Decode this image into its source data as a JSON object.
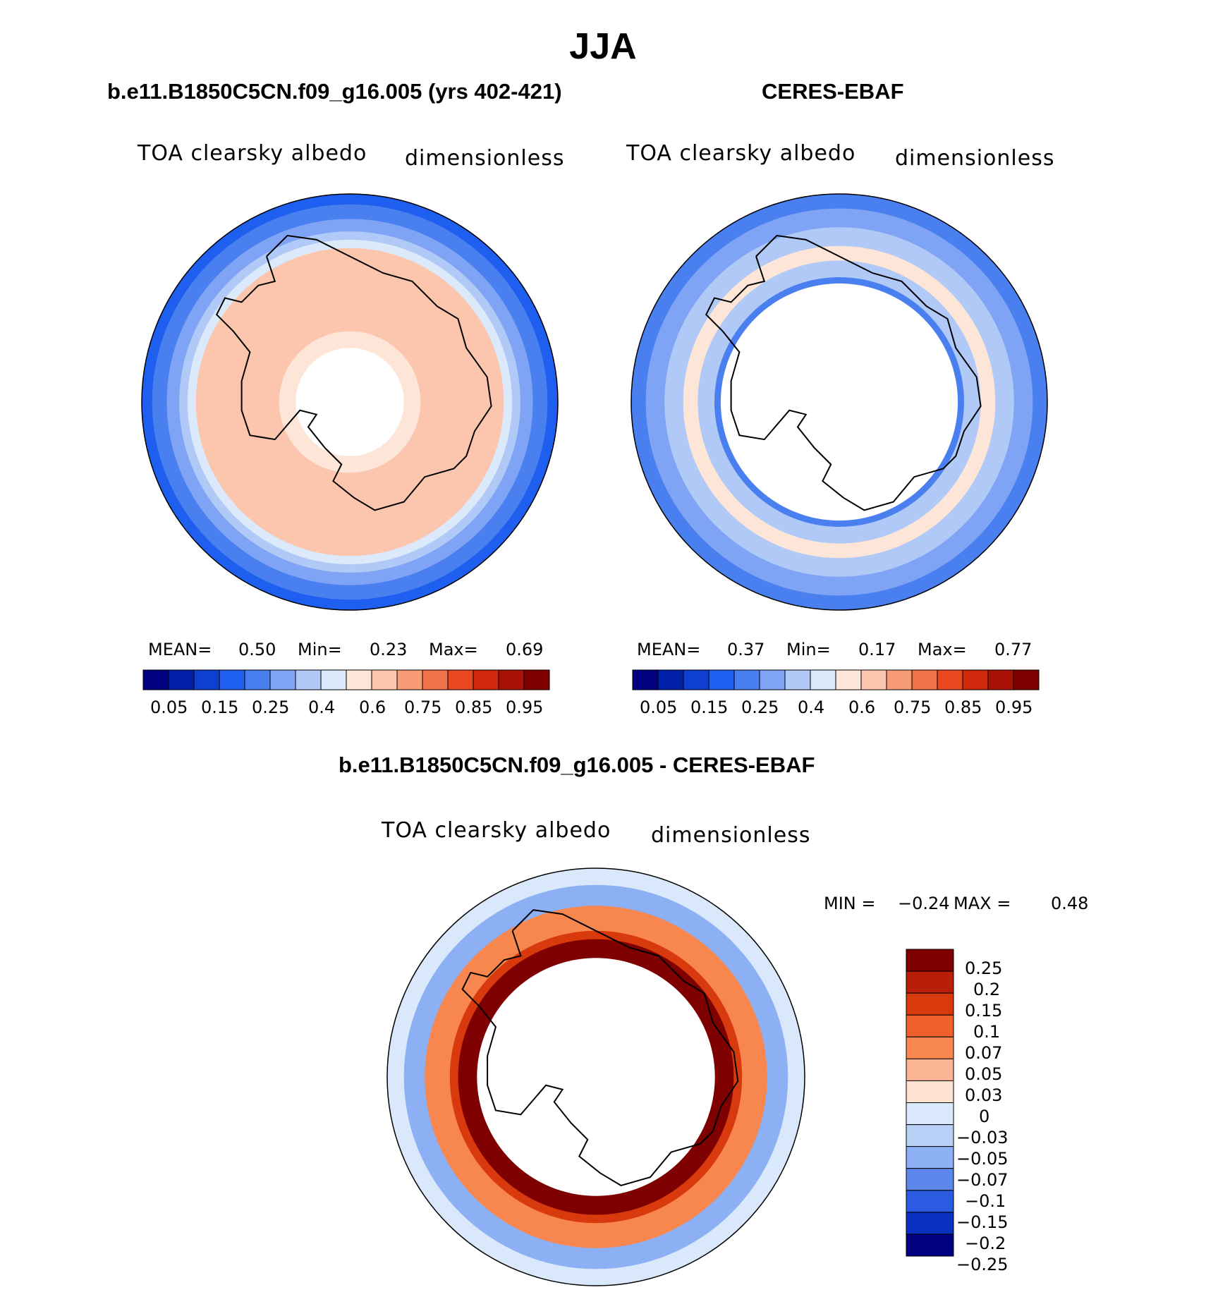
{
  "title": "JJA",
  "colors": {
    "abs_scale": [
      "#000080",
      "#001fa8",
      "#0f3fd1",
      "#1f5ff0",
      "#4a7ff0",
      "#7fa4f5",
      "#b0c9f7",
      "#dce9fa",
      "#fde6d8",
      "#fbc6ad",
      "#f79c77",
      "#f07248",
      "#e9471f",
      "#d0280a",
      "#a81105",
      "#7f0000"
    ],
    "diff_scale": [
      "#7f0000",
      "#b81e08",
      "#d93a0d",
      "#f0602a",
      "#f7874f",
      "#fbb494",
      "#fde2d2",
      "#d9e8fb",
      "#b9d0f7",
      "#8cb0f3",
      "#5c86ea",
      "#2a5be0",
      "#0a30c0",
      "#000080"
    ],
    "outline": "#000000"
  },
  "chart_data": [
    {
      "id": "model",
      "type": "polar_contour_map",
      "title": "b.e11.B1850C5CN.f09_g16.005 (yrs 402-421)",
      "variable": "TOA clearsky albedo",
      "units": "dimensionless",
      "stats": {
        "mean_label": "MEAN=",
        "mean": "0.50",
        "min_label": "Min=",
        "min": "0.23",
        "max_label": "Max=",
        "max": "0.69"
      },
      "contour_levels": [
        "0.05",
        "0.15",
        "0.25",
        "0.4",
        "0.6",
        "0.75",
        "0.85",
        "0.95"
      ],
      "rings": [
        {
          "r_frac": 1.0,
          "c": 3
        },
        {
          "r_frac": 0.95,
          "c": 4
        },
        {
          "r_frac": 0.88,
          "c": 5
        },
        {
          "r_frac": 0.82,
          "c": 6
        },
        {
          "r_frac": 0.78,
          "c": 7
        },
        {
          "r_frac": 0.74,
          "c": 9
        },
        {
          "r_frac": 0.34,
          "c": 8
        },
        {
          "r_frac": 0.26,
          "hole": true
        }
      ]
    },
    {
      "id": "obs",
      "type": "polar_contour_map",
      "title": "CERES-EBAF",
      "variable": "TOA clearsky albedo",
      "units": "dimensionless",
      "stats": {
        "mean_label": "MEAN=",
        "mean": "0.37",
        "min_label": "Min=",
        "min": "0.17",
        "max_label": "Max=",
        "max": "0.77"
      },
      "contour_levels": [
        "0.05",
        "0.15",
        "0.25",
        "0.4",
        "0.6",
        "0.75",
        "0.85",
        "0.95"
      ],
      "rings": [
        {
          "r_frac": 1.0,
          "c": 4
        },
        {
          "r_frac": 0.93,
          "c": 5
        },
        {
          "r_frac": 0.84,
          "c": 6
        },
        {
          "r_frac": 0.75,
          "c": 8
        },
        {
          "r_frac": 0.68,
          "c": 6
        },
        {
          "r_frac": 0.6,
          "c": 4
        },
        {
          "r_frac": 0.57,
          "hole": true
        }
      ]
    },
    {
      "id": "diff",
      "type": "polar_contour_map",
      "title": "b.e11.B1850C5CN.f09_g16.005 - CERES-EBAF",
      "variable": "TOA clearsky albedo",
      "units": "dimensionless",
      "stats": {
        "min_label": "MIN =",
        "min": "−0.24",
        "max_label": "MAX =",
        "max": "0.48"
      },
      "contour_levels": [
        "0.25",
        "0.2",
        "0.15",
        "0.1",
        "0.07",
        "0.05",
        "0.03",
        "0",
        "−0.03",
        "−0.05",
        "−0.07",
        "−0.1",
        "−0.15",
        "−0.2",
        "−0.25"
      ],
      "rings": [
        {
          "r_frac": 1.0,
          "c": 7
        },
        {
          "r_frac": 0.92,
          "c": 9
        },
        {
          "r_frac": 0.82,
          "c": 4
        },
        {
          "r_frac": 0.7,
          "c": 2
        },
        {
          "r_frac": 0.66,
          "c": 0
        },
        {
          "r_frac": 0.57,
          "hole": true
        }
      ]
    }
  ]
}
